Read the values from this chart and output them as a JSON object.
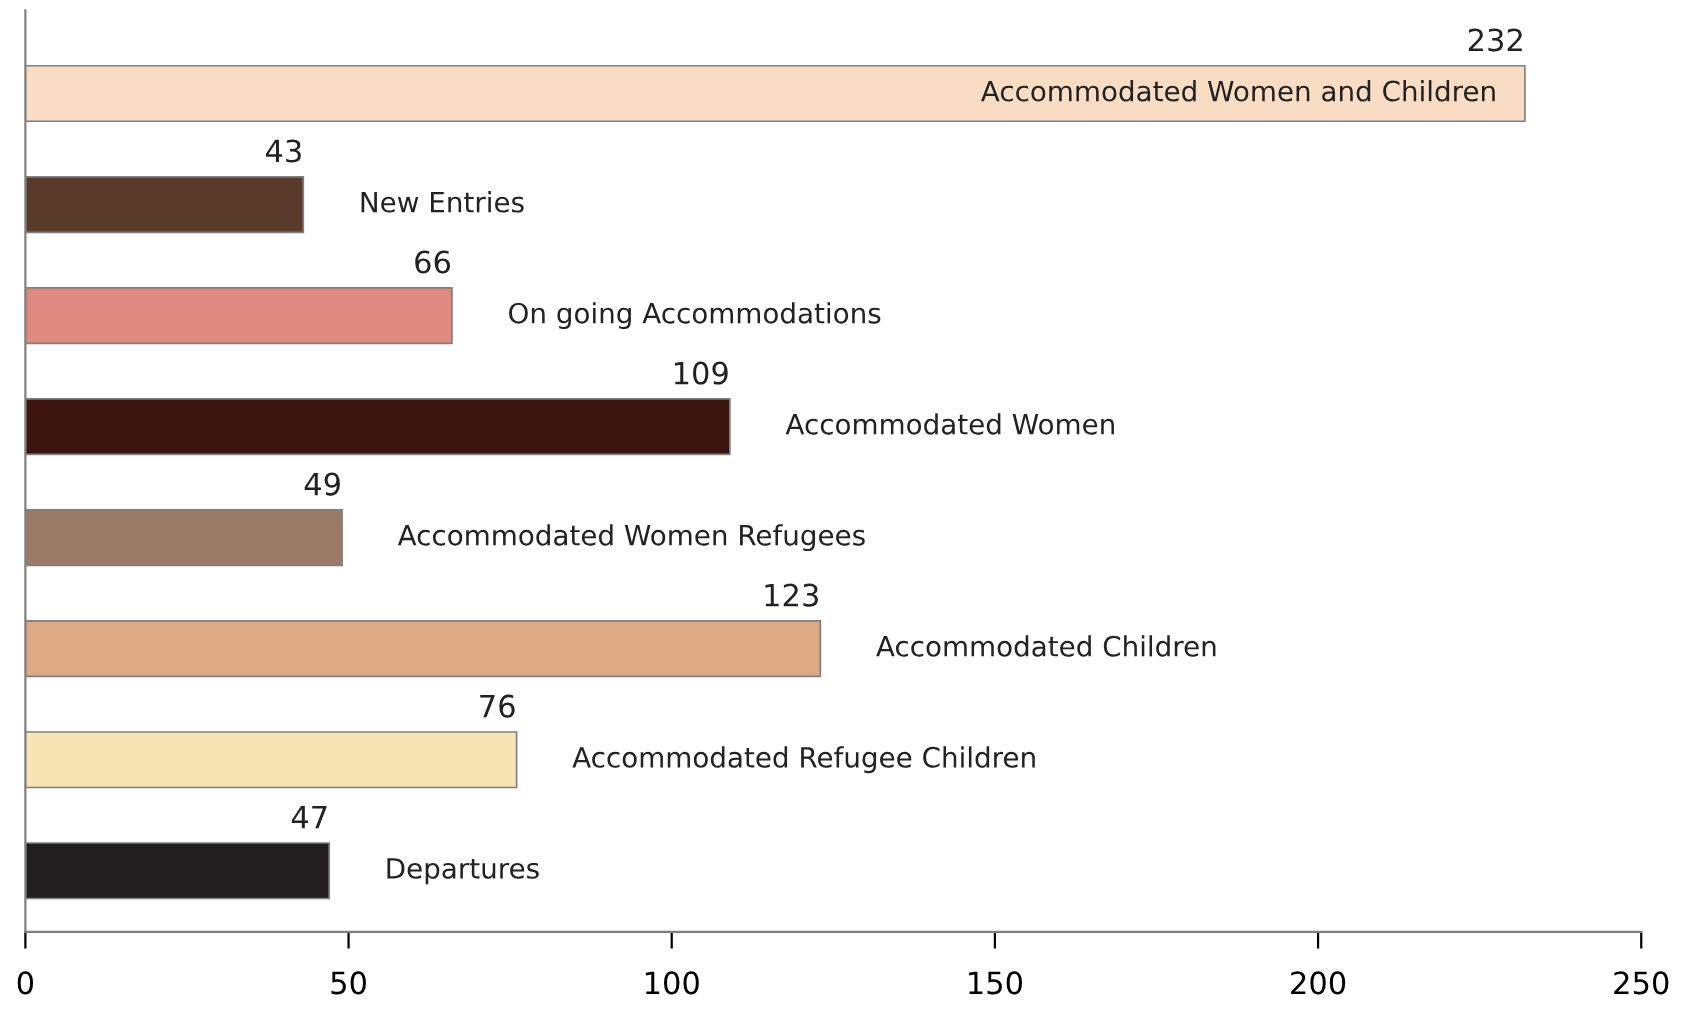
{
  "chart_data": {
    "type": "bar",
    "orientation": "horizontal",
    "categories": [
      "Accommodated Women and Children",
      "New Entries",
      "On going Accommodations",
      "Accommodated Women",
      "Accommodated Women Refugees",
      "Accommodated Children",
      "Accommodated Refugee Children",
      "Departures"
    ],
    "values": [
      232,
      43,
      66,
      109,
      49,
      123,
      76,
      47
    ],
    "colors": [
      "#f9dcc4",
      "#5a3a2a",
      "#e08a80",
      "#3a1510",
      "#9c7a68",
      "#dcaa84",
      "#f8e4b4",
      "#231f20"
    ],
    "xlim": [
      0,
      250
    ],
    "xticks": [
      0,
      50,
      100,
      150,
      200,
      250
    ],
    "data_labels": true,
    "grid": false,
    "legend": false
  }
}
